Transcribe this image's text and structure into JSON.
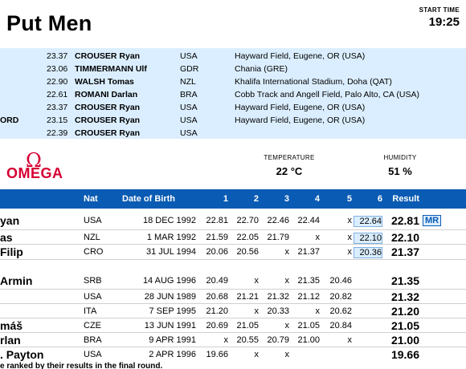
{
  "header": {
    "title": "Put Men",
    "start_time_label": "START TIME",
    "start_time": "19:25"
  },
  "records": [
    {
      "label": "",
      "mark": "23.37",
      "name": "CROUSER Ryan",
      "nat": "USA",
      "venue": "Hayward Field, Eugene, OR (USA)"
    },
    {
      "label": "",
      "mark": "23.06",
      "name": "TIMMERMANN Ulf",
      "nat": "GDR",
      "venue": "Chania (GRE)"
    },
    {
      "label": "",
      "mark": "22.90",
      "name": "WALSH Tomas",
      "nat": "NZL",
      "venue": "Khalifa International Stadium, Doha (QAT)"
    },
    {
      "label": "",
      "mark": "22.61",
      "name": "ROMANI Darlan",
      "nat": "BRA",
      "venue": "Cobb Track and Angell Field, Palo Alto, CA (USA)"
    },
    {
      "label": "",
      "mark": "23.37",
      "name": "CROUSER Ryan",
      "nat": "USA",
      "venue": "Hayward Field, Eugene, OR (USA)"
    },
    {
      "label": "ORD",
      "mark": "23.15",
      "name": "CROUSER Ryan",
      "nat": "USA",
      "venue": "Hayward Field, Eugene, OR (USA)"
    },
    {
      "label": "",
      "mark": "22.39",
      "name": "CROUSER Ryan",
      "nat": "USA",
      "venue": ""
    }
  ],
  "sponsor": {
    "symbol": "Ω",
    "word": "OMEGA"
  },
  "weather": {
    "temperature_label": "TEMPERATURE",
    "temperature": "22 °C",
    "humidity_label": "HUMIDITY",
    "humidity": "51 %"
  },
  "table": {
    "headers": {
      "nat": "Nat",
      "dob": "Date of Birth",
      "a1": "1",
      "a2": "2",
      "a3": "3",
      "a4": "4",
      "a5": "5",
      "a6": "6",
      "result": "Result"
    },
    "rows": [
      {
        "name": "yan",
        "nat": "USA",
        "dob": "18 DEC 1992",
        "a": [
          "22.81",
          "22.70",
          "22.46",
          "22.44",
          "x",
          "22.64"
        ],
        "result": "22.81",
        "record": "MR",
        "hl6": true
      },
      {
        "name": "as",
        "nat": "NZL",
        "dob": "1 MAR 1992",
        "a": [
          "21.59",
          "22.05",
          "21.79",
          "x",
          "x",
          "22.10"
        ],
        "result": "22.10",
        "record": "",
        "hl6": true
      },
      {
        "name": "Filip",
        "nat": "CRO",
        "dob": "31 JUL 1994",
        "a": [
          "20.06",
          "20.56",
          "x",
          "21.37",
          "x",
          "20.36"
        ],
        "result": "21.37",
        "record": "",
        "hl6": true
      },
      {
        "name": "Armin",
        "nat": "SRB",
        "dob": "14 AUG 1996",
        "a": [
          "20.49",
          "x",
          "x",
          "21.35",
          "20.46",
          ""
        ],
        "result": "21.35",
        "record": "",
        "hl6": false
      },
      {
        "name": "",
        "nat": "USA",
        "dob": "28 JUN 1989",
        "a": [
          "20.68",
          "21.21",
          "21.32",
          "21.12",
          "20.82",
          ""
        ],
        "result": "21.32",
        "record": "",
        "hl6": false
      },
      {
        "name": "",
        "nat": "ITA",
        "dob": "7 SEP 1995",
        "a": [
          "21.20",
          "x",
          "20.33",
          "x",
          "20.62",
          ""
        ],
        "result": "21.20",
        "record": "",
        "hl6": false
      },
      {
        "name": "máš",
        "nat": "CZE",
        "dob": "13 JUN 1991",
        "a": [
          "20.69",
          "21.05",
          "x",
          "21.05",
          "20.84",
          ""
        ],
        "result": "21.05",
        "record": "",
        "hl6": false
      },
      {
        "name": "rlan",
        "nat": "BRA",
        "dob": "9 APR 1991",
        "a": [
          "x",
          "20.55",
          "20.79",
          "21.00",
          "x",
          ""
        ],
        "result": "21.00",
        "record": "",
        "hl6": false
      },
      {
        "name": ". Payton",
        "nat": "USA",
        "dob": "2 APR 1996",
        "a": [
          "19.66",
          "x",
          "x",
          "",
          "",
          ""
        ],
        "result": "19.66",
        "record": "",
        "hl6": false
      }
    ],
    "footnote": "e ranked by their results in the final round."
  }
}
